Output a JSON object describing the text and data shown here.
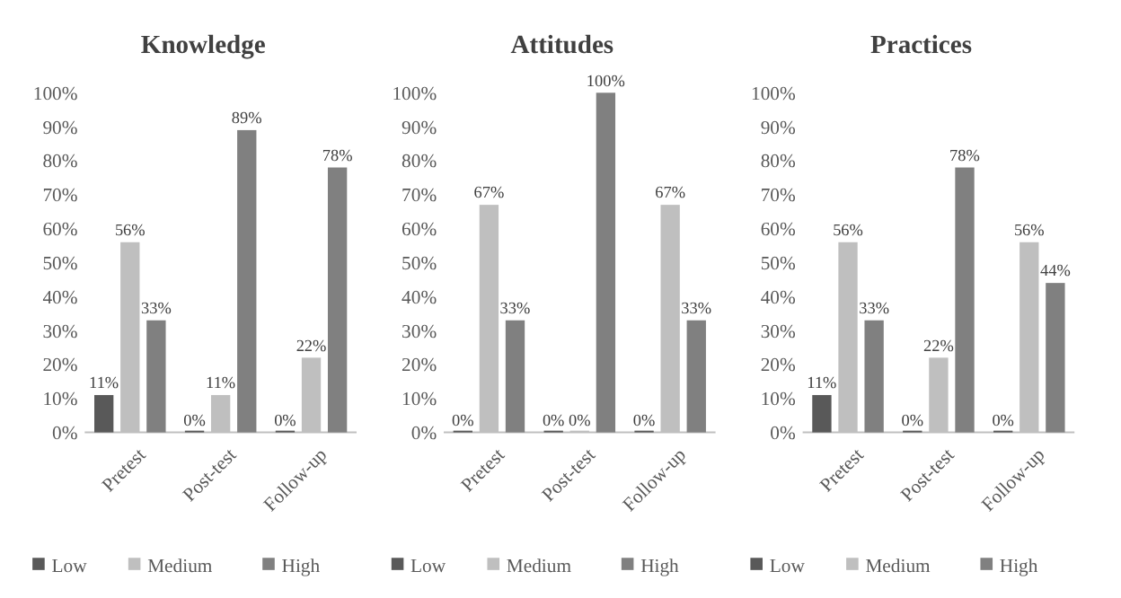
{
  "chart_data": [
    {
      "type": "bar",
      "title": "Knowledge",
      "categories": [
        "Pretest",
        "Post-test",
        "Follow-up"
      ],
      "ylim": [
        0,
        100
      ],
      "yticks": [
        {
          "value": 0,
          "label": "0%"
        },
        {
          "value": 10,
          "label": "10%"
        },
        {
          "value": 20,
          "label": "20%"
        },
        {
          "value": 30,
          "label": "30%"
        },
        {
          "value": 40,
          "label": "40%"
        },
        {
          "value": 50,
          "label": "50%"
        },
        {
          "value": 60,
          "label": "60%"
        },
        {
          "value": 70,
          "label": "70%"
        },
        {
          "value": 80,
          "label": "80%"
        },
        {
          "value": 90,
          "label": "90%"
        },
        {
          "value": 100,
          "label": "100%"
        }
      ],
      "legend": "bottom",
      "grid": false,
      "series": [
        {
          "name": "Low",
          "color": "#595959",
          "values": [
            11,
            0,
            0
          ],
          "value_labels": [
            "11%",
            "0%",
            "0%"
          ]
        },
        {
          "name": "Medium",
          "color": "#bfbfbf",
          "values": [
            56,
            11,
            22
          ],
          "value_labels": [
            "56%",
            "11%",
            "22%"
          ]
        },
        {
          "name": "High",
          "color": "#808080",
          "values": [
            33,
            89,
            78
          ],
          "value_labels": [
            "33%",
            "89%",
            "78%"
          ]
        }
      ]
    },
    {
      "type": "bar",
      "title": "Attitudes",
      "categories": [
        "Pretest",
        "Post-test",
        "Follow-up"
      ],
      "ylim": [
        0,
        100
      ],
      "yticks": [
        {
          "value": 0,
          "label": "0%"
        },
        {
          "value": 10,
          "label": "10%"
        },
        {
          "value": 20,
          "label": "20%"
        },
        {
          "value": 30,
          "label": "30%"
        },
        {
          "value": 40,
          "label": "40%"
        },
        {
          "value": 50,
          "label": "50%"
        },
        {
          "value": 60,
          "label": "60%"
        },
        {
          "value": 70,
          "label": "70%"
        },
        {
          "value": 80,
          "label": "80%"
        },
        {
          "value": 90,
          "label": "90%"
        },
        {
          "value": 100,
          "label": "100%"
        }
      ],
      "legend": "bottom",
      "grid": false,
      "series": [
        {
          "name": "Low",
          "color": "#595959",
          "values": [
            0,
            0,
            0
          ],
          "value_labels": [
            "0%",
            "0%",
            "0%"
          ]
        },
        {
          "name": "Medium",
          "color": "#bfbfbf",
          "values": [
            67,
            0,
            67
          ],
          "value_labels": [
            "67%",
            "0%",
            "67%"
          ]
        },
        {
          "name": "High",
          "color": "#808080",
          "values": [
            33,
            100,
            33
          ],
          "value_labels": [
            "33%",
            "100%",
            "33%"
          ]
        }
      ]
    },
    {
      "type": "bar",
      "title": "Practices",
      "categories": [
        "Pretest",
        "Post-test",
        "Follow-up"
      ],
      "ylim": [
        0,
        100
      ],
      "yticks": [
        {
          "value": 0,
          "label": "0%"
        },
        {
          "value": 10,
          "label": "10%"
        },
        {
          "value": 20,
          "label": "20%"
        },
        {
          "value": 30,
          "label": "30%"
        },
        {
          "value": 40,
          "label": "40%"
        },
        {
          "value": 50,
          "label": "50%"
        },
        {
          "value": 60,
          "label": "60%"
        },
        {
          "value": 70,
          "label": "70%"
        },
        {
          "value": 80,
          "label": "80%"
        },
        {
          "value": 90,
          "label": "90%"
        },
        {
          "value": 100,
          "label": "100%"
        }
      ],
      "legend": "bottom",
      "grid": false,
      "series": [
        {
          "name": "Low",
          "color": "#595959",
          "values": [
            11,
            0,
            0
          ],
          "value_labels": [
            "11%",
            "0%",
            "0%"
          ]
        },
        {
          "name": "Medium",
          "color": "#bfbfbf",
          "values": [
            56,
            22,
            56
          ],
          "value_labels": [
            "56%",
            "22%",
            "56%"
          ]
        },
        {
          "name": "High",
          "color": "#808080",
          "values": [
            33,
            78,
            44
          ],
          "value_labels": [
            "33%",
            "78%",
            "44%"
          ]
        }
      ]
    }
  ]
}
